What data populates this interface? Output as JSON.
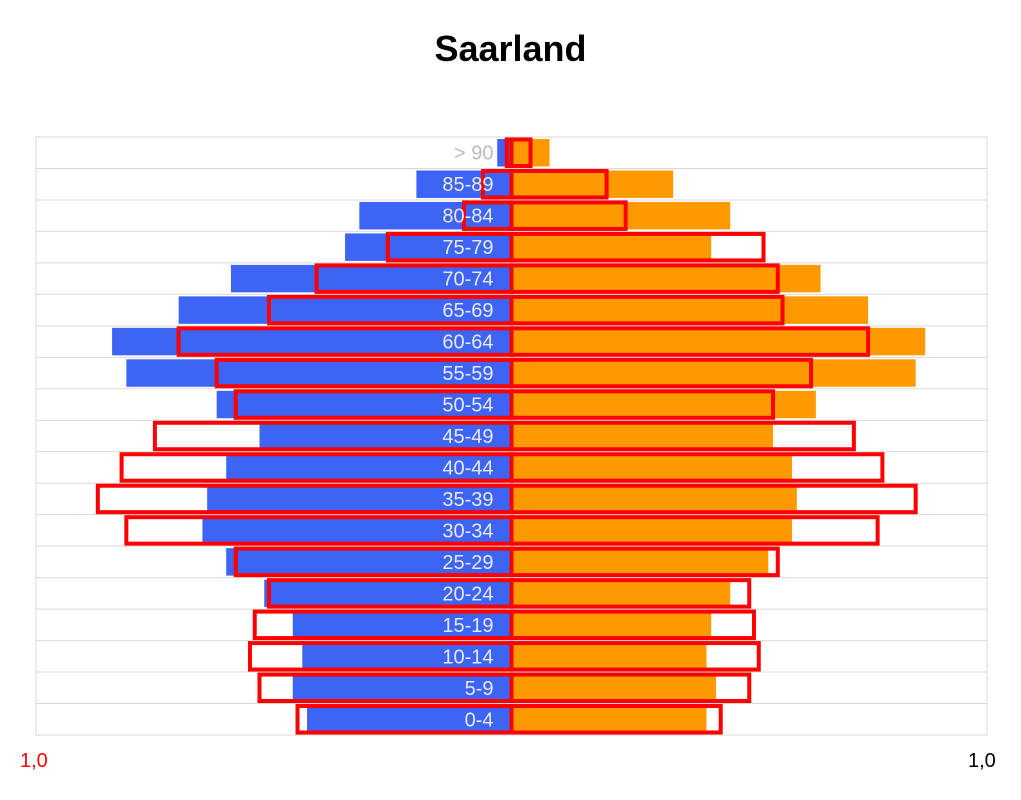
{
  "title": "Saarland",
  "left_axis_label": "1,0",
  "right_axis_label": "1,0",
  "colors": {
    "male_fill": "#3d64f5",
    "female_fill": "#ff9900",
    "outline": "#ff0000",
    "grid": "#d9d9d9",
    "age_label": "#e8e8e8",
    "top_age_label": "#bbbbbb",
    "left_axis_label": "#ff0000",
    "right_axis_label": "#000000"
  },
  "chart_data": {
    "type": "bar",
    "orientation": "horizontal",
    "subtype": "population-pyramid",
    "title": "Saarland",
    "categories": [
      "0-4",
      "5-9",
      "10-14",
      "15-19",
      "20-24",
      "25-29",
      "30-34",
      "35-39",
      "40-44",
      "45-49",
      "50-54",
      "55-59",
      "60-64",
      "65-69",
      "70-74",
      "75-79",
      "80-84",
      "85-89",
      "> 90"
    ],
    "xlim": [
      -1.0,
      1.0
    ],
    "tick_labels": [
      "1,0",
      "1,0"
    ],
    "grid": true,
    "series": [
      {
        "side": "left",
        "style": "filled",
        "values": [
          0.43,
          0.46,
          0.44,
          0.46,
          0.52,
          0.6,
          0.65,
          0.64,
          0.6,
          0.53,
          0.62,
          0.81,
          0.84,
          0.7,
          0.59,
          0.35,
          0.32,
          0.2,
          0.03
        ]
      },
      {
        "side": "right",
        "style": "filled",
        "values": [
          0.41,
          0.43,
          0.41,
          0.42,
          0.46,
          0.54,
          0.59,
          0.6,
          0.59,
          0.55,
          0.64,
          0.85,
          0.87,
          0.75,
          0.65,
          0.42,
          0.46,
          0.34,
          0.08
        ]
      },
      {
        "side": "left",
        "style": "outline",
        "values": [
          0.45,
          0.53,
          0.55,
          0.54,
          0.51,
          0.58,
          0.81,
          0.87,
          0.82,
          0.75,
          0.58,
          0.62,
          0.7,
          0.51,
          0.41,
          0.26,
          0.1,
          0.06,
          0.01
        ]
      },
      {
        "side": "right",
        "style": "outline",
        "values": [
          0.44,
          0.5,
          0.52,
          0.51,
          0.5,
          0.56,
          0.77,
          0.85,
          0.78,
          0.72,
          0.55,
          0.63,
          0.75,
          0.57,
          0.56,
          0.53,
          0.24,
          0.2,
          0.04
        ]
      }
    ]
  }
}
